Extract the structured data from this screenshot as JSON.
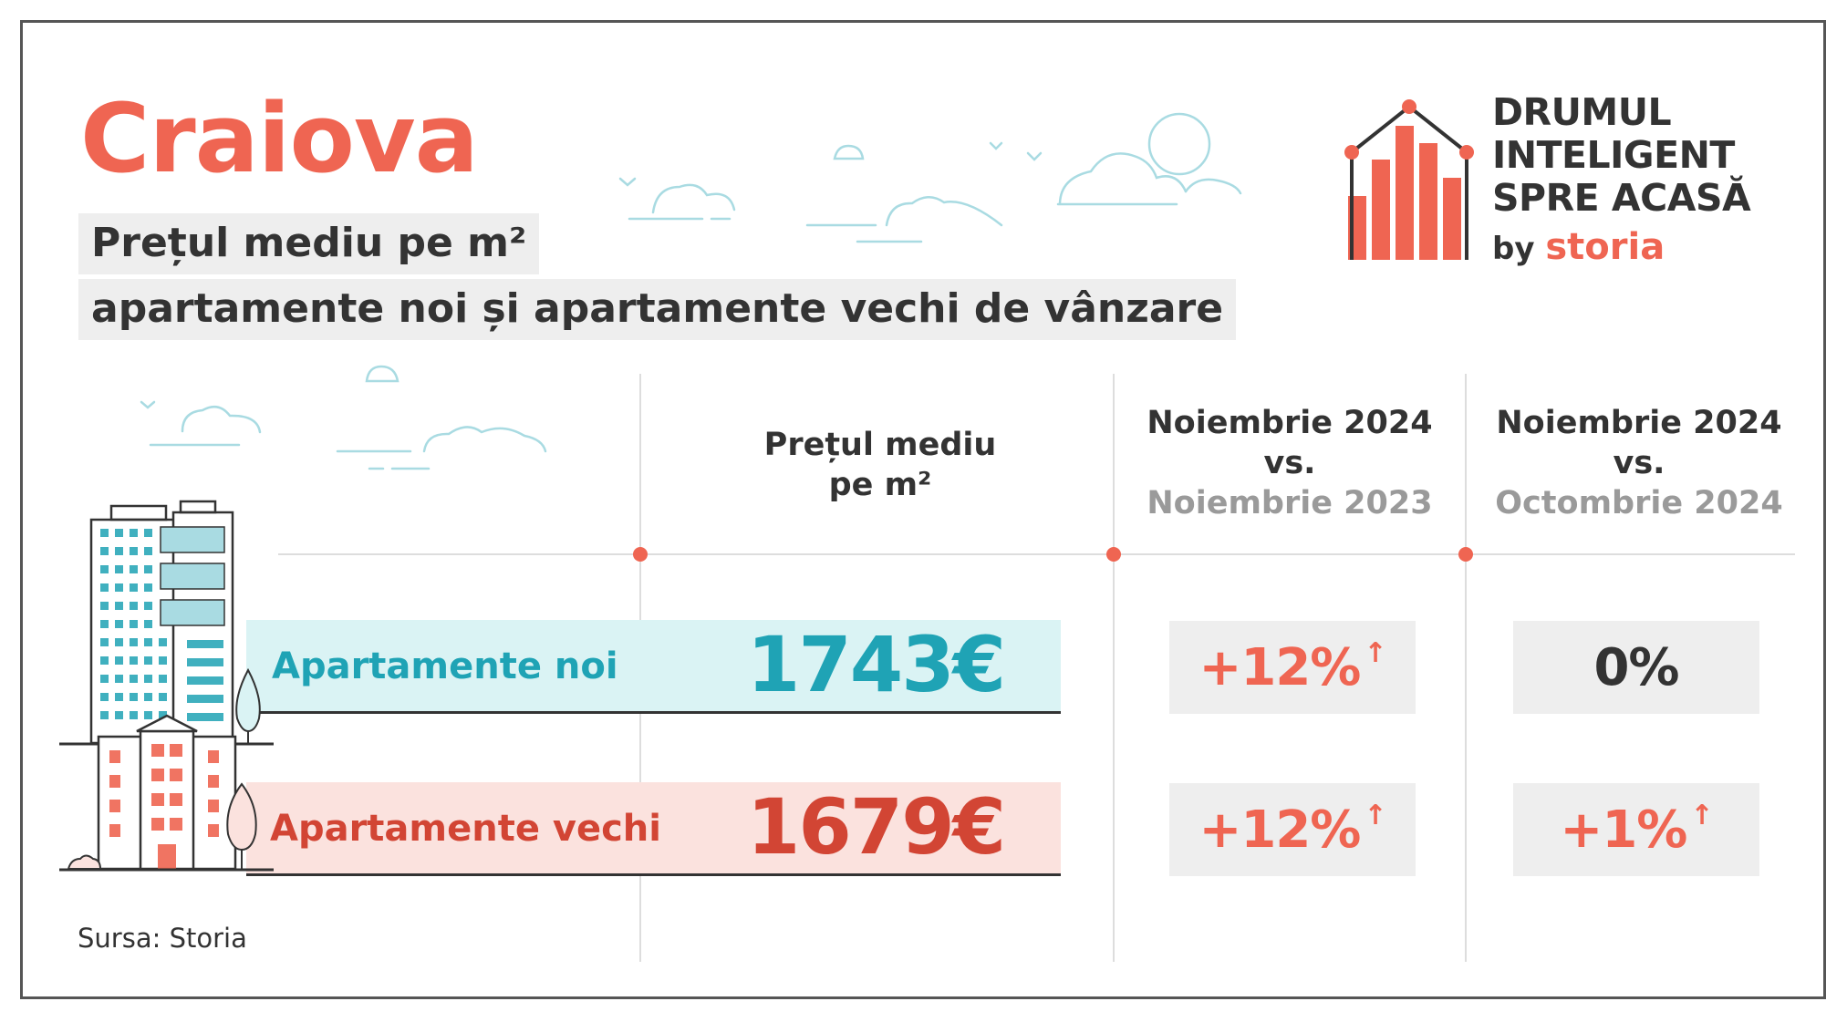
{
  "city": "Craiova",
  "subtitle_line1": "Prețul mediu pe m²",
  "subtitle_line2": "apartamente noi și apartamente vechi de vânzare",
  "logo": {
    "line1": "DRUMUL",
    "line2": "INTELIGENT",
    "line3": "SPRE ACASĂ",
    "by": "by",
    "brand": "storia"
  },
  "columns": {
    "price_line1": "Prețul mediu",
    "price_line2": "pe m²",
    "yoy_line1": "Noiembrie 2024",
    "yoy_line2": "vs.",
    "yoy_line3": "Noiembrie 2023",
    "mom_line1": "Noiembrie 2024",
    "mom_line2": "vs.",
    "mom_line3": "Octombrie 2024"
  },
  "rows": {
    "new": {
      "label": "Apartamente noi",
      "price": "1743€",
      "yoy": "+12%",
      "mom": "0%"
    },
    "old": {
      "label": "Apartamente vechi",
      "price": "1679€",
      "yoy": "+12%",
      "mom": "+1%"
    }
  },
  "arrow_glyph": "↑",
  "source": "Sursa: Storia",
  "colors": {
    "accent": "#ef6552",
    "new_text": "#1fa3b5",
    "new_band": "#daf3f4",
    "old_text": "#d24534",
    "old_band": "#fbe2de",
    "chip_bg": "#eeeeee",
    "muted": "#9a9a9a"
  },
  "icons": [
    "cloud-icon",
    "bird-icon",
    "storia-logo-chart-icon",
    "new-building-icon",
    "old-building-icon",
    "tree-icon",
    "bush-icon"
  ]
}
